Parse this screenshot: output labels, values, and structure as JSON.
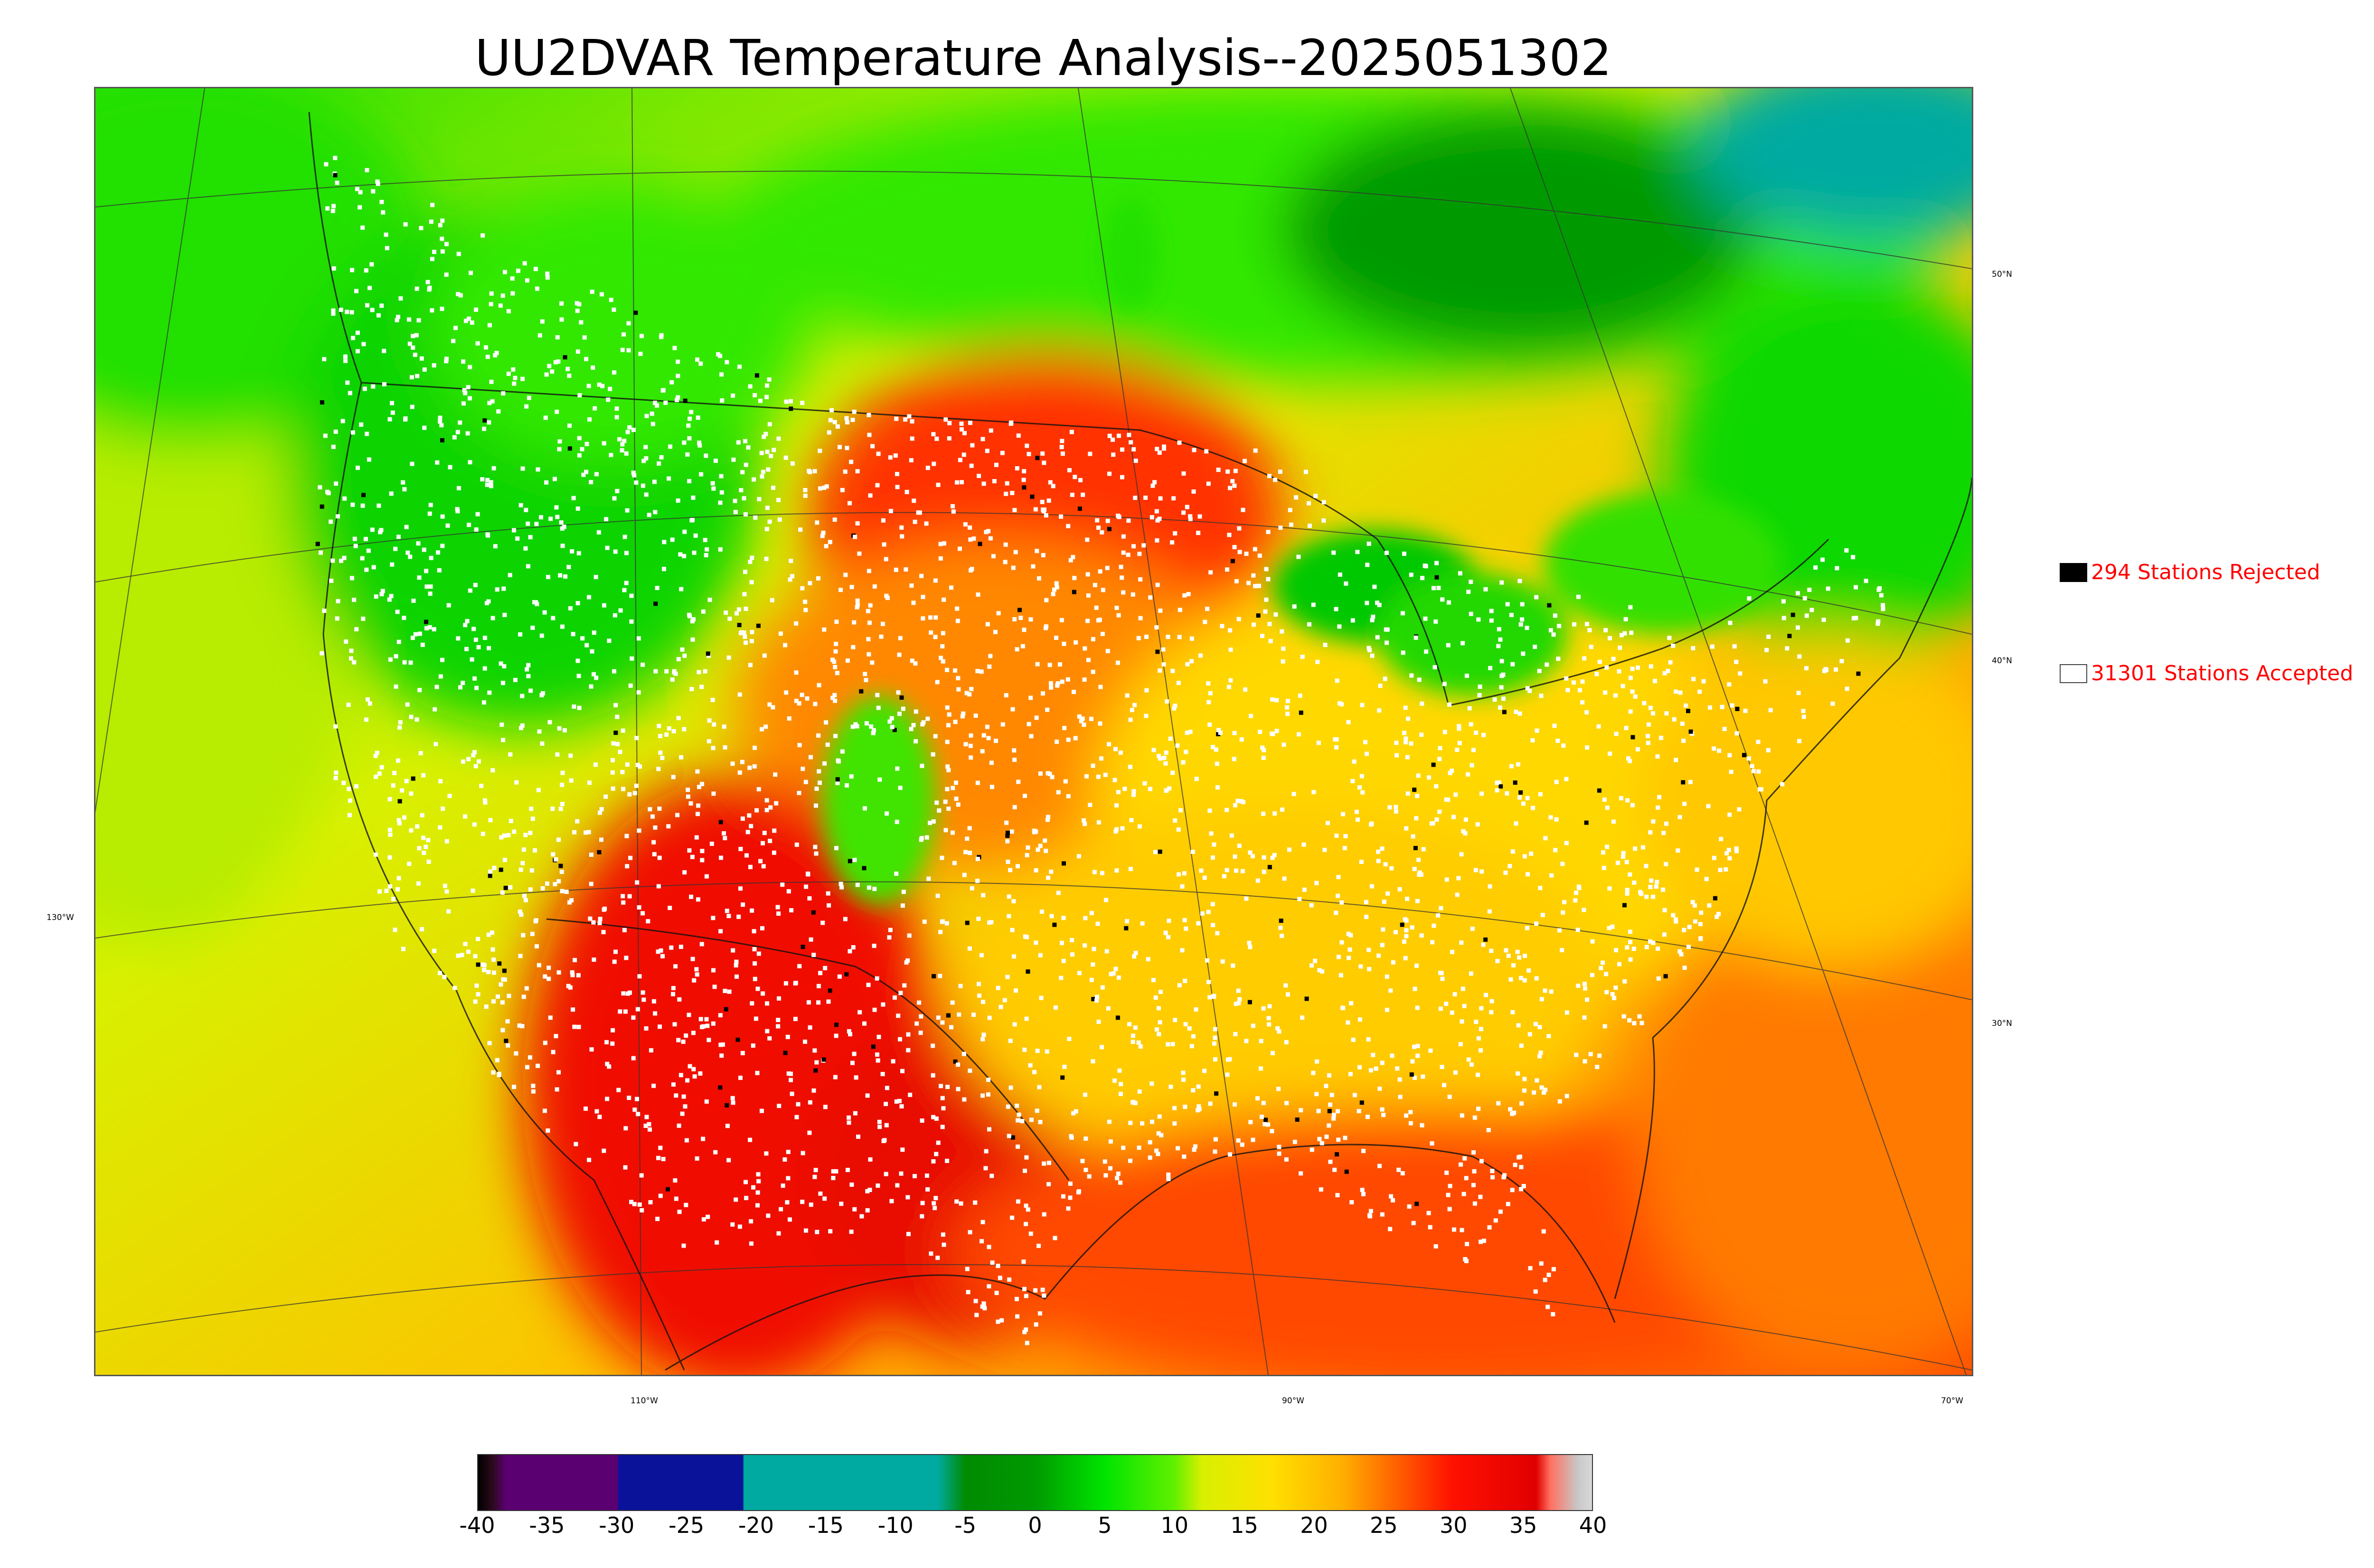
{
  "title": "UU2DVAR Temperature Analysis--2025051302",
  "map": {
    "lat_labels": [
      "50°N",
      "40°N",
      "30°N"
    ],
    "lon_labels": [
      "130°W",
      "110°W",
      "90°W",
      "70°W"
    ]
  },
  "legend": {
    "rejected": "294 Stations Rejected",
    "accepted": "31301 Stations Accepted",
    "rejected_color": "#000000",
    "accepted_color": "#ffffff",
    "text_color": "#ff0000"
  },
  "colorbar": {
    "ticks": [
      "-40",
      "-35",
      "-30",
      "-25",
      "-20",
      "-15",
      "-10",
      "-5",
      "0",
      "5",
      "10",
      "15",
      "20",
      "25",
      "30",
      "35",
      "40"
    ],
    "colors": [
      {
        "value": -40,
        "color": "#000000"
      },
      {
        "value": -39,
        "color": "#2a0a1a"
      },
      {
        "value": -38,
        "color": "#5a0070"
      },
      {
        "value": -30,
        "color": "#5a0070"
      },
      {
        "value": -29.9,
        "color": "#0a1299"
      },
      {
        "value": -21,
        "color": "#0a1299"
      },
      {
        "value": -20.9,
        "color": "#00aaa0"
      },
      {
        "value": -7,
        "color": "#00aaa0"
      },
      {
        "value": -5,
        "color": "#008b00"
      },
      {
        "value": 0,
        "color": "#009a00"
      },
      {
        "value": 5,
        "color": "#00e400"
      },
      {
        "value": 10,
        "color": "#60f000"
      },
      {
        "value": 12,
        "color": "#d8f000"
      },
      {
        "value": 17,
        "color": "#ffe000"
      },
      {
        "value": 22,
        "color": "#ffb000"
      },
      {
        "value": 26,
        "color": "#ff6000"
      },
      {
        "value": 30,
        "color": "#ff1000"
      },
      {
        "value": 36,
        "color": "#e00000"
      },
      {
        "value": 37,
        "color": "#ff7060"
      },
      {
        "value": 39,
        "color": "#c8c8c8"
      },
      {
        "value": 40,
        "color": "#d8d8d8"
      }
    ]
  }
}
